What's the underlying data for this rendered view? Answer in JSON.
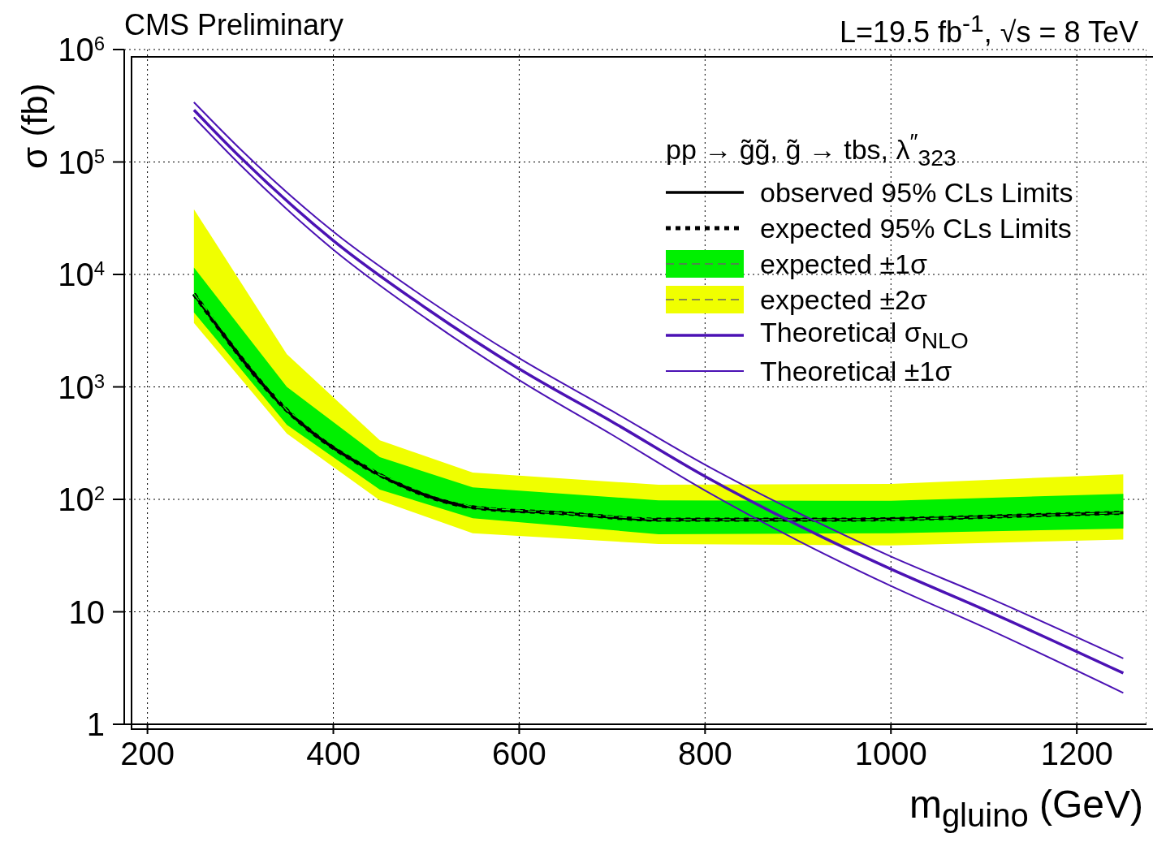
{
  "chart_data": {
    "type": "line",
    "title": "CMS Preliminary",
    "subtitle": "L=19.5 fb$^{-1}$, √s = 8 TeV",
    "xlabel": "m$_{gluino}$ (GeV)",
    "ylabel": "σ (fb)",
    "legend_title": "pp → g̃g̃, g̃ → tbs, λ$^{″}$$_{323}$",
    "legend": "top right",
    "grid": true,
    "log": "y",
    "xlim": [
      175,
      1275
    ],
    "xticks": [
      200,
      400,
      600,
      800,
      1000,
      1200
    ],
    "ylim": [
      1,
      1000000
    ],
    "yticks": [
      1,
      10,
      {
        "value": 100,
        "label": "10$^{2}$"
      },
      {
        "value": 1000,
        "label": "10$^{3}$"
      },
      {
        "value": 10000,
        "label": "10$^{4}$"
      },
      {
        "value": 100000,
        "label": "10$^{5}$"
      },
      {
        "value": 1000000,
        "label": "10$^{6}$"
      }
    ],
    "series": [
      {
        "name": "expected ±2σ",
        "type": "line",
        "color": "#f0ff00",
        "line_style": "dashed",
        "x": [
          250,
          350,
          450,
          550,
          750,
          1000,
          1250
        ],
        "values": [
          null,
          null,
          null,
          null,
          null,
          null,
          null
        ],
        "lower": [
          3700,
          385,
          98,
          50,
          40,
          39,
          44
        ],
        "upper": [
          38000,
          1950,
          335,
          173,
          135,
          137,
          167
        ]
      },
      {
        "name": "expected ±1σ",
        "type": "line",
        "color": "#00f000",
        "line_style": "dashed",
        "x": [
          250,
          350,
          450,
          550,
          750,
          1000,
          1250
        ],
        "values": [
          6700,
          620,
          165,
          85,
          66,
          66,
          76
        ],
        "lower": [
          4600,
          460,
          122,
          68,
          49,
          50,
          55
        ],
        "upper": [
          11500,
          1000,
          237,
          128,
          98,
          97,
          112
        ]
      },
      {
        "name": "observed 95% CLs Limits",
        "type": "line",
        "color": "#000000",
        "line_style": "solid",
        "x": [
          250,
          350,
          450,
          550,
          650,
          750,
          850,
          950,
          1050,
          1150,
          1250
        ],
        "values": [
          6700,
          620,
          165,
          85,
          75,
          66,
          66,
          66,
          68,
          72,
          76
        ]
      },
      {
        "name": "expected 95% CLs Limits",
        "type": "line",
        "color": "#000000",
        "line_style": "dotted",
        "x": [
          250,
          350,
          450,
          550,
          650,
          750,
          850,
          950,
          1050,
          1150,
          1250
        ],
        "values": [
          6700,
          620,
          165,
          85,
          75,
          66,
          66,
          66,
          68,
          72,
          76
        ]
      },
      {
        "name": "Theoretical σ$_{NLO}$",
        "type": "line",
        "color": "#4b12b4",
        "line_style": "solid",
        "x": [
          250,
          300,
          400,
          500,
          600,
          700,
          800,
          900,
          1000,
          1100,
          1250
        ],
        "values": [
          290000,
          110000,
          20000,
          5000,
          1450,
          490,
          160,
          59,
          24,
          10.5,
          2.85
        ]
      },
      {
        "name": "Theoretical ±1σ",
        "type": "line",
        "color": "#4b12b4",
        "line_style": "solid",
        "x": [
          250,
          300,
          400,
          500,
          600,
          700,
          800,
          900,
          1000,
          1100,
          1250
        ],
        "values": [
          340000,
          130000,
          24000,
          6100,
          1800,
          610,
          203,
          76,
          31,
          13.9,
          3.85
        ]
      },
      {
        "type": "line",
        "color": "#4b12b4",
        "line_style": "solid",
        "x": [
          250,
          300,
          400,
          500,
          600,
          700,
          800,
          900,
          1000,
          1100,
          1250
        ],
        "values": [
          250000,
          94000,
          16600,
          4050,
          1150,
          375,
          120,
          43,
          17,
          7.3,
          1.9
        ]
      }
    ]
  }
}
